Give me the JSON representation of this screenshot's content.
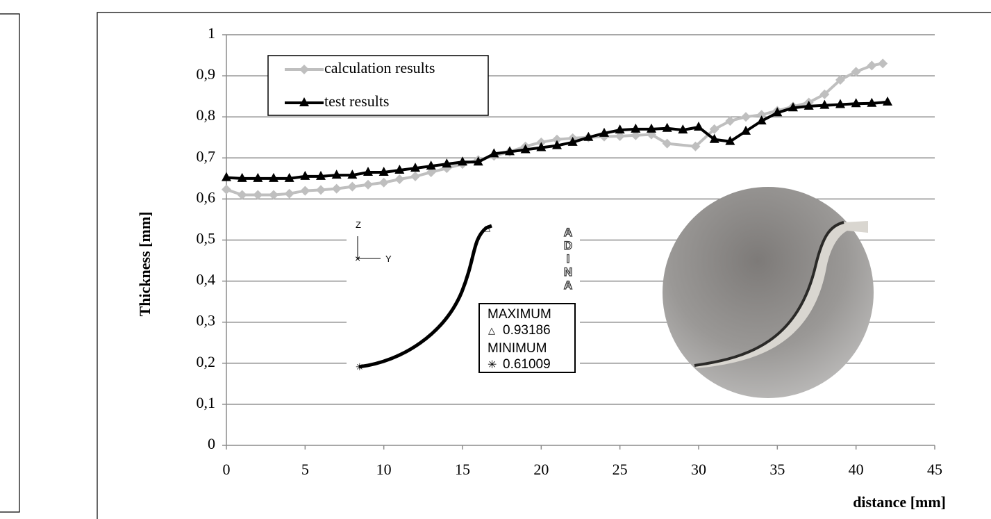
{
  "chart_data": {
    "type": "line",
    "xlabel": "distance [mm]",
    "ylabel": "Thickness [mm]",
    "xlim": [
      0,
      45
    ],
    "xticks": [
      0,
      5,
      10,
      15,
      20,
      25,
      30,
      35,
      40,
      45
    ],
    "ylim": [
      0,
      1
    ],
    "yticks": [
      0,
      {
        "value": 0.1,
        "label": "0,1"
      },
      {
        "value": 0.2,
        "label": "0,2"
      },
      {
        "value": 0.3,
        "label": "0,3"
      },
      {
        "value": 0.4,
        "label": "0,4"
      },
      {
        "value": 0.5,
        "label": "0,5"
      },
      {
        "value": 0.6,
        "label": "0,6"
      },
      {
        "value": 0.7,
        "label": "0,7"
      },
      {
        "value": 0.8,
        "label": "0,8"
      },
      {
        "value": 0.9,
        "label": "0,9"
      },
      1
    ],
    "grid": true,
    "legend": "upper left",
    "series": [
      {
        "name": "calculation results",
        "color": "#bfbfbf",
        "marker": "diamond",
        "x": [
          0,
          1,
          2,
          3,
          4,
          5,
          6,
          7,
          8,
          9,
          10,
          11,
          12,
          13,
          14,
          15,
          16,
          17,
          18,
          19,
          20,
          21,
          22,
          23,
          24,
          25,
          26,
          27,
          28,
          29.8,
          31,
          32,
          33,
          34,
          35,
          36,
          37,
          38,
          39,
          40,
          41,
          41.7
        ],
        "values": [
          0.623,
          0.61,
          0.61,
          0.61,
          0.613,
          0.62,
          0.622,
          0.625,
          0.63,
          0.635,
          0.64,
          0.648,
          0.655,
          0.665,
          0.675,
          0.685,
          0.695,
          0.705,
          0.715,
          0.728,
          0.738,
          0.745,
          0.748,
          0.75,
          0.752,
          0.753,
          0.755,
          0.757,
          0.735,
          0.728,
          0.77,
          0.79,
          0.8,
          0.805,
          0.815,
          0.825,
          0.835,
          0.855,
          0.89,
          0.91,
          0.925,
          0.93
        ]
      },
      {
        "name": "test results",
        "color": "#000000",
        "marker": "triangle",
        "x": [
          0,
          1,
          2,
          3,
          4,
          5,
          6,
          7,
          8,
          9,
          10,
          11,
          12,
          13,
          14,
          15,
          16,
          17,
          18,
          19,
          20,
          21,
          22,
          23,
          24,
          25,
          26,
          27,
          28,
          29,
          30,
          31,
          32,
          33,
          34,
          35,
          36,
          37,
          38,
          39,
          40,
          41,
          42
        ],
        "values": [
          0.652,
          0.65,
          0.65,
          0.65,
          0.65,
          0.655,
          0.655,
          0.658,
          0.658,
          0.665,
          0.665,
          0.67,
          0.675,
          0.68,
          0.685,
          0.69,
          0.69,
          0.71,
          0.715,
          0.72,
          0.725,
          0.73,
          0.738,
          0.75,
          0.76,
          0.768,
          0.77,
          0.77,
          0.772,
          0.768,
          0.775,
          0.745,
          0.74,
          0.765,
          0.79,
          0.81,
          0.822,
          0.826,
          0.828,
          0.83,
          0.832,
          0.833,
          0.836
        ]
      }
    ],
    "inset": {
      "axis_z": "Z",
      "axis_y": "Y",
      "logo": [
        "A",
        "D",
        "I",
        "N",
        "A"
      ],
      "max_label": "MAXIMUM",
      "max_value": 0.93186,
      "min_label": "MINIMUM",
      "min_value": 0.61009
    }
  }
}
